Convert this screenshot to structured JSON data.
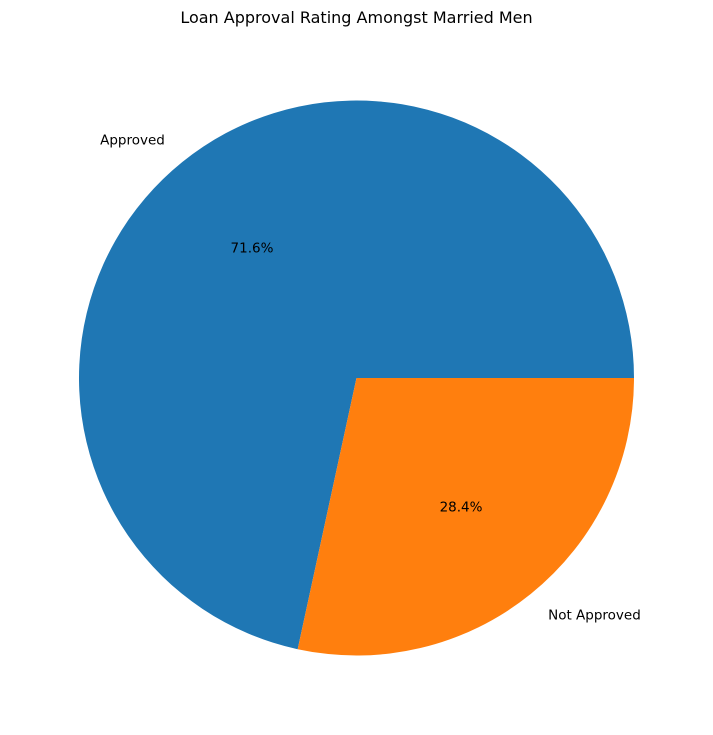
{
  "chart_data": {
    "type": "pie",
    "title": "Loan Approval Rating Amongst Married Men",
    "categories": [
      "Approved",
      "Not Approved"
    ],
    "values": [
      71.6,
      28.4
    ],
    "value_labels": [
      "71.6%",
      "28.4%"
    ],
    "colors": [
      "#1f77b4",
      "#ff7f0e"
    ],
    "start_angle_deg": 0,
    "direction": "counterclockwise",
    "legend": "none"
  }
}
